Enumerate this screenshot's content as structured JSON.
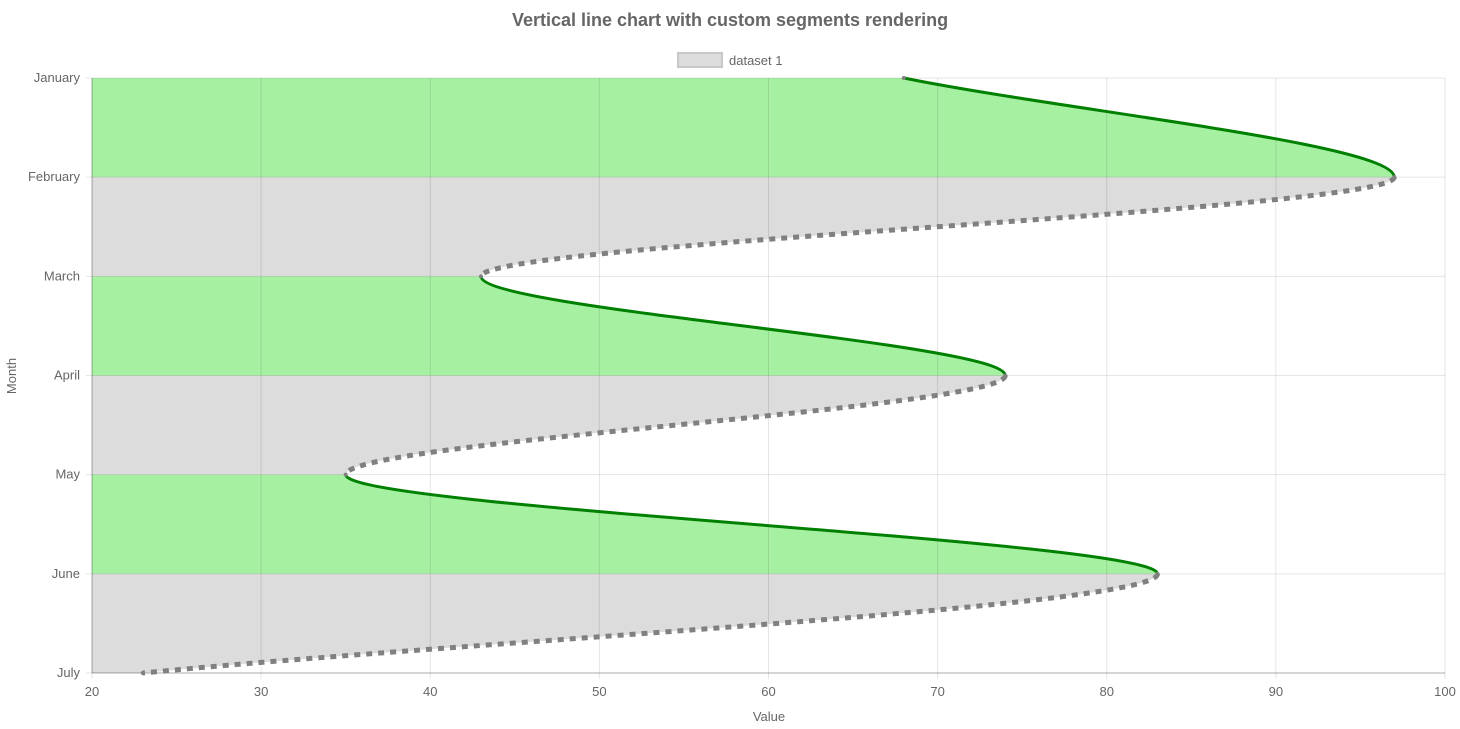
{
  "chart_data": {
    "type": "line",
    "orientation": "vertical",
    "title": "Vertical line chart with custom segments rendering",
    "xlabel": "Value",
    "ylabel": "Month",
    "xlim": [
      20,
      100
    ],
    "x_ticks": [
      "20",
      "30",
      "40",
      "50",
      "60",
      "70",
      "80",
      "90",
      "100"
    ],
    "categories": [
      "January",
      "February",
      "March",
      "April",
      "May",
      "June",
      "July"
    ],
    "legend_position": "top",
    "grid": true,
    "series": [
      {
        "name": "dataset 1",
        "values": [
          68,
          97,
          43,
          74,
          35,
          83,
          23
        ]
      }
    ],
    "segment_rule": "segments with increasing value: solid green line, green fill; segments with decreasing value: dashed grey line, grey fill",
    "colors": {
      "up_line": "#008000",
      "up_fill": "#a6f0a2",
      "down_line": "#808080",
      "down_fill": "#dcdcdc",
      "legend_fill": "#dcdcdc",
      "legend_border": "#c8c8c8"
    }
  }
}
